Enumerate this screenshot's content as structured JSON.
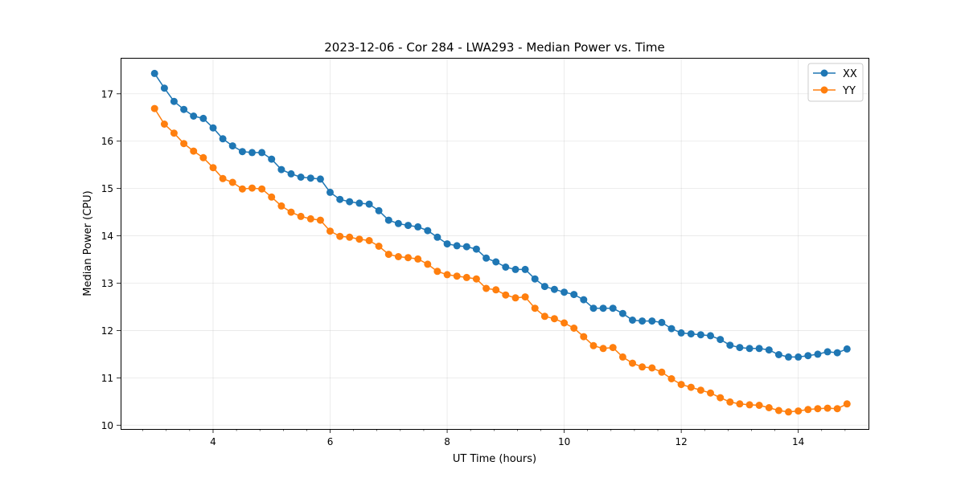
{
  "chart_data": {
    "type": "line",
    "title": "2023-12-06 - Cor 284 - LWA293 - Median Power vs. Time",
    "xlabel": "UT Time (hours)",
    "ylabel": "Median Power (CPU)",
    "xlim": [
      2.42,
      15.2
    ],
    "ylim": [
      9.92,
      17.76
    ],
    "xticks": [
      4,
      6,
      8,
      10,
      12,
      14
    ],
    "xtick_labels": [
      "4",
      "6",
      "8",
      "10",
      "12",
      "14"
    ],
    "yticks": [
      10,
      11,
      12,
      13,
      14,
      15,
      16,
      17
    ],
    "ytick_labels": [
      "10",
      "11",
      "12",
      "13",
      "14",
      "15",
      "16",
      "17"
    ],
    "grid": true,
    "legend_position": "top-right",
    "x": [
      3.0,
      3.167,
      3.333,
      3.5,
      3.667,
      3.833,
      4.0,
      4.167,
      4.333,
      4.5,
      4.667,
      4.833,
      5.0,
      5.167,
      5.333,
      5.5,
      5.667,
      5.833,
      6.0,
      6.167,
      6.333,
      6.5,
      6.667,
      6.833,
      7.0,
      7.167,
      7.333,
      7.5,
      7.667,
      7.833,
      8.0,
      8.167,
      8.333,
      8.5,
      8.667,
      8.833,
      9.0,
      9.167,
      9.333,
      9.5,
      9.667,
      9.833,
      10.0,
      10.167,
      10.333,
      10.5,
      10.667,
      10.833,
      11.0,
      11.167,
      11.333,
      11.5,
      11.667,
      11.833,
      12.0,
      12.167,
      12.333,
      12.5,
      12.667,
      12.833,
      13.0,
      13.167,
      13.333,
      13.5,
      13.667,
      13.833,
      14.0,
      14.167,
      14.333,
      14.5,
      14.667,
      14.833
    ],
    "series": [
      {
        "name": "XX",
        "color": "#1f77b4",
        "values": [
          17.43,
          17.12,
          16.84,
          16.67,
          16.53,
          16.48,
          16.28,
          16.05,
          15.9,
          15.78,
          15.76,
          15.76,
          15.62,
          15.4,
          15.31,
          15.24,
          15.22,
          15.2,
          14.92,
          14.77,
          14.72,
          14.69,
          14.67,
          14.53,
          14.33,
          14.26,
          14.22,
          14.19,
          14.11,
          13.97,
          13.83,
          13.79,
          13.77,
          13.72,
          13.53,
          13.45,
          13.34,
          13.29,
          13.29,
          13.09,
          12.93,
          12.87,
          12.81,
          12.76,
          12.65,
          12.47,
          12.47,
          12.47,
          12.36,
          12.22,
          12.2,
          12.2,
          12.17,
          12.04,
          11.95,
          11.93,
          11.91,
          11.89,
          11.81,
          11.69,
          11.64,
          11.62,
          11.62,
          11.59,
          11.49,
          11.44,
          11.44,
          11.47,
          11.5,
          11.55,
          11.53,
          11.61
        ]
      },
      {
        "name": "YY",
        "color": "#ff7f0e",
        "values": [
          16.69,
          16.36,
          16.17,
          15.95,
          15.79,
          15.65,
          15.44,
          15.21,
          15.13,
          14.99,
          15.01,
          14.99,
          14.82,
          14.63,
          14.5,
          14.41,
          14.36,
          14.33,
          14.1,
          13.99,
          13.97,
          13.93,
          13.9,
          13.78,
          13.61,
          13.56,
          13.54,
          13.51,
          13.4,
          13.25,
          13.18,
          13.15,
          13.12,
          13.09,
          12.89,
          12.86,
          12.75,
          12.69,
          12.71,
          12.47,
          12.3,
          12.25,
          12.16,
          12.05,
          11.87,
          11.68,
          11.62,
          11.64,
          11.44,
          11.31,
          11.23,
          11.21,
          11.12,
          10.98,
          10.86,
          10.8,
          10.74,
          10.68,
          10.58,
          10.49,
          10.45,
          10.43,
          10.42,
          10.37,
          10.31,
          10.28,
          10.3,
          10.33,
          10.35,
          10.36,
          10.35,
          10.45
        ]
      }
    ]
  }
}
